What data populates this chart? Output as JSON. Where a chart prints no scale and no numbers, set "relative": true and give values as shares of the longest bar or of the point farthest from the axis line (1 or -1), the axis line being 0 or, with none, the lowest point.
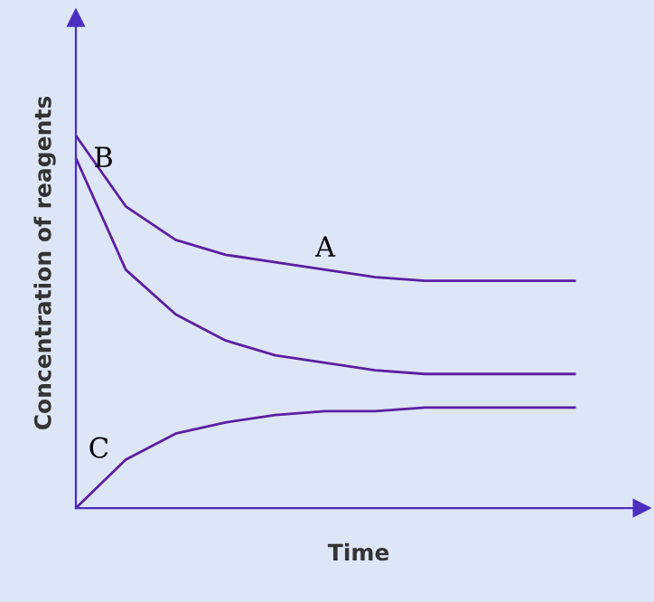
{
  "chart_data": {
    "type": "line",
    "relative": true,
    "xlabel": "Time",
    "ylabel": "Concentration of reagents",
    "categories": [
      null,
      null,
      null,
      null,
      null,
      null,
      null,
      null,
      null,
      null,
      null
    ],
    "series": [
      {
        "name": "A",
        "color": "#5b1fa0",
        "values": [
          1,
          0.81,
          0.72,
          0.68,
          0.66,
          0.64,
          0.62,
          0.61,
          0.61,
          0.61,
          0.61
        ]
      },
      {
        "name": "B",
        "color": "#5b1fa0",
        "values": [
          0.94,
          0.64,
          0.52,
          0.45,
          0.41,
          0.39,
          0.37,
          0.36,
          0.36,
          0.36,
          0.36
        ]
      },
      {
        "name": "C",
        "color": "#5b1fa0",
        "values": [
          0,
          0.13,
          0.2,
          0.23,
          0.25,
          0.26,
          0.26,
          0.27,
          0.27,
          0.27,
          0.27
        ]
      }
    ],
    "legend": false
  }
}
